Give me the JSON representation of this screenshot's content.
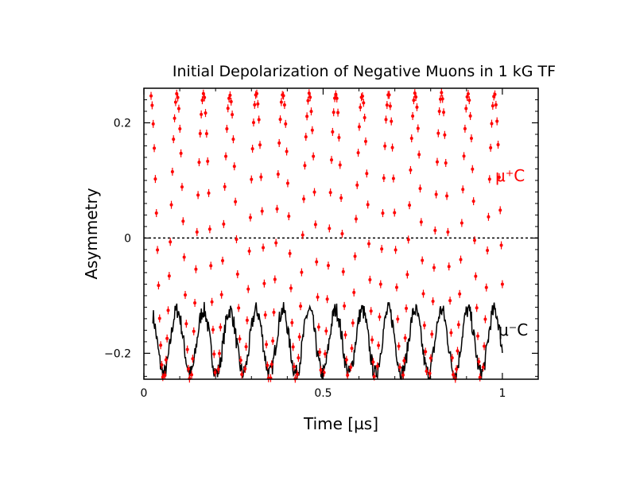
{
  "chart_data": {
    "type": "scatter",
    "title": "Initial Depolarization of Negative Muons in 1 kG TF",
    "xlabel": "Time [µs]",
    "ylabel": "Asymmetry",
    "xlim": [
      0,
      1.1
    ],
    "ylim": [
      -0.245,
      0.26
    ],
    "x_ticks": [
      0,
      0.5,
      1
    ],
    "x_tick_labels": [
      "0",
      "0.5",
      "1"
    ],
    "y_ticks": [
      -0.2,
      0,
      0.2
    ],
    "y_tick_labels": [
      "−0.2",
      "0",
      "0.2"
    ],
    "reference_line": {
      "y": 0,
      "style": "dotted"
    },
    "grid": false,
    "series": [
      {
        "label": "μ⁺C",
        "color": "#ff0000",
        "marker": "point with error bars",
        "model": {
          "offset": 0.0,
          "amplitude": 0.25,
          "frequency_MHz": 13.55,
          "phase_deg": -90
        },
        "time_range": [
          0.02,
          1.0
        ],
        "n_points": 330
      },
      {
        "label": "μ⁻C",
        "color": "#000000",
        "marker": "line",
        "model": {
          "offset": -0.18,
          "amplitude": 0.055,
          "frequency_MHz": 13.55,
          "phase_deg": -90
        },
        "time_range": [
          0.025,
          1.0
        ],
        "n_points": 600
      }
    ]
  }
}
